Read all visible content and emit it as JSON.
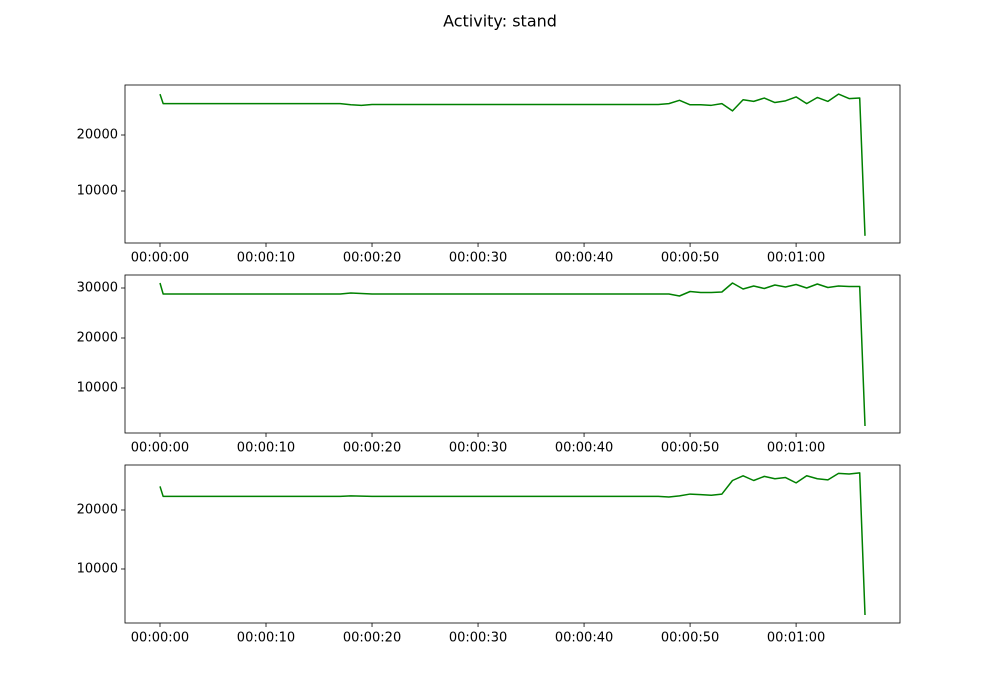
{
  "title": "Activity: stand",
  "chart_data": [
    {
      "type": "line",
      "x": [
        0,
        0.3,
        1,
        2,
        3,
        4,
        5,
        6,
        7,
        8,
        9,
        10,
        11,
        12,
        13,
        14,
        15,
        16,
        17,
        18,
        19,
        20,
        21,
        22,
        23,
        24,
        25,
        26,
        27,
        28,
        29,
        30,
        31,
        32,
        33,
        34,
        35,
        36,
        37,
        38,
        39,
        40,
        41,
        42,
        43,
        44,
        45,
        46,
        47,
        48,
        49,
        50,
        51,
        52,
        53,
        54,
        55,
        56,
        57,
        58,
        59,
        60,
        61,
        62,
        63,
        64,
        65,
        66,
        66.5
      ],
      "series": [
        {
          "color": "#008000",
          "values": [
            27300,
            25600,
            25600,
            25600,
            25600,
            25600,
            25600,
            25600,
            25600,
            25600,
            25600,
            25600,
            25600,
            25600,
            25600,
            25600,
            25600,
            25600,
            25600,
            25400,
            25300,
            25450,
            25450,
            25450,
            25450,
            25450,
            25450,
            25450,
            25450,
            25450,
            25450,
            25450,
            25450,
            25450,
            25450,
            25450,
            25450,
            25450,
            25450,
            25450,
            25450,
            25450,
            25450,
            25450,
            25450,
            25450,
            25450,
            25450,
            25450,
            25600,
            26200,
            25400,
            25400,
            25300,
            25600,
            24300,
            26300,
            26000,
            26600,
            25800,
            26100,
            26800,
            25600,
            26700,
            26000,
            27300,
            26500,
            26600,
            2000
          ]
        }
      ],
      "xlim": [
        -3.3,
        69.8
      ],
      "xticks": [
        {
          "value": 0,
          "label": "00:00:00"
        },
        {
          "value": 10,
          "label": "00:00:10"
        },
        {
          "value": 20,
          "label": "00:00:20"
        },
        {
          "value": 30,
          "label": "00:00:30"
        },
        {
          "value": 40,
          "label": "00:00:40"
        },
        {
          "value": 50,
          "label": "00:00:50"
        },
        {
          "value": 60,
          "label": "00:01:00"
        }
      ],
      "ylim": [
        714,
        28929
      ],
      "yticks": [
        10000,
        20000
      ]
    },
    {
      "type": "line",
      "x": [
        0,
        0.3,
        1,
        2,
        3,
        4,
        5,
        6,
        7,
        8,
        9,
        10,
        11,
        12,
        13,
        14,
        15,
        16,
        17,
        18,
        19,
        20,
        21,
        22,
        23,
        24,
        25,
        26,
        27,
        28,
        29,
        30,
        31,
        32,
        33,
        34,
        35,
        36,
        37,
        38,
        39,
        40,
        41,
        42,
        43,
        44,
        45,
        46,
        47,
        48,
        49,
        50,
        51,
        52,
        53,
        54,
        55,
        56,
        57,
        58,
        59,
        60,
        61,
        62,
        63,
        64,
        65,
        66,
        66.5
      ],
      "series": [
        {
          "color": "#008000",
          "values": [
            31000,
            28800,
            28800,
            28800,
            28800,
            28800,
            28800,
            28800,
            28800,
            28800,
            28800,
            28800,
            28800,
            28800,
            28800,
            28800,
            28800,
            28800,
            28800,
            29000,
            28900,
            28800,
            28800,
            28800,
            28800,
            28800,
            28800,
            28800,
            28800,
            28800,
            28800,
            28800,
            28800,
            28800,
            28800,
            28800,
            28800,
            28800,
            28800,
            28800,
            28800,
            28800,
            28800,
            28800,
            28800,
            28800,
            28800,
            28800,
            28800,
            28800,
            28400,
            29300,
            29100,
            29100,
            29200,
            31000,
            29800,
            30400,
            29900,
            30600,
            30200,
            30700,
            30000,
            30800,
            30100,
            30400,
            30300,
            30300,
            2400
          ]
        }
      ],
      "xlim": [
        -3.3,
        69.8
      ],
      "xticks": [
        {
          "value": 0,
          "label": "00:00:00"
        },
        {
          "value": 10,
          "label": "00:00:10"
        },
        {
          "value": 20,
          "label": "00:00:20"
        },
        {
          "value": 30,
          "label": "00:00:30"
        },
        {
          "value": 40,
          "label": "00:00:40"
        },
        {
          "value": 50,
          "label": "00:00:50"
        },
        {
          "value": 60,
          "label": "00:01:00"
        }
      ],
      "ylim": [
        1000,
        32600
      ],
      "yticks": [
        10000,
        20000,
        30000
      ]
    },
    {
      "type": "line",
      "x": [
        0,
        0.3,
        1,
        2,
        3,
        4,
        5,
        6,
        7,
        8,
        9,
        10,
        11,
        12,
        13,
        14,
        15,
        16,
        17,
        18,
        19,
        20,
        21,
        22,
        23,
        24,
        25,
        26,
        27,
        28,
        29,
        30,
        31,
        32,
        33,
        34,
        35,
        36,
        37,
        38,
        39,
        40,
        41,
        42,
        43,
        44,
        45,
        46,
        47,
        48,
        49,
        50,
        51,
        52,
        53,
        54,
        55,
        56,
        57,
        58,
        59,
        60,
        61,
        62,
        63,
        64,
        65,
        66,
        66.5
      ],
      "series": [
        {
          "color": "#008000",
          "values": [
            24000,
            22300,
            22300,
            22300,
            22300,
            22300,
            22300,
            22300,
            22300,
            22300,
            22300,
            22300,
            22300,
            22300,
            22300,
            22300,
            22300,
            22300,
            22300,
            22400,
            22350,
            22300,
            22300,
            22300,
            22300,
            22300,
            22300,
            22300,
            22300,
            22300,
            22300,
            22300,
            22300,
            22300,
            22300,
            22300,
            22300,
            22300,
            22300,
            22300,
            22300,
            22300,
            22300,
            22300,
            22300,
            22300,
            22300,
            22300,
            22300,
            22200,
            22400,
            22700,
            22600,
            22500,
            22700,
            25000,
            25800,
            25000,
            25700,
            25300,
            25500,
            24600,
            25800,
            25300,
            25100,
            26200,
            26100,
            26300,
            2200
          ]
        }
      ],
      "xlim": [
        -3.3,
        69.8
      ],
      "xticks": [
        {
          "value": 0,
          "label": "00:00:00"
        },
        {
          "value": 10,
          "label": "00:00:10"
        },
        {
          "value": 20,
          "label": "00:00:20"
        },
        {
          "value": 30,
          "label": "00:00:30"
        },
        {
          "value": 40,
          "label": "00:00:40"
        },
        {
          "value": 50,
          "label": "00:00:50"
        },
        {
          "value": 60,
          "label": "00:01:00"
        }
      ],
      "ylim": [
        845,
        27627
      ],
      "yticks": [
        10000,
        20000
      ]
    }
  ]
}
